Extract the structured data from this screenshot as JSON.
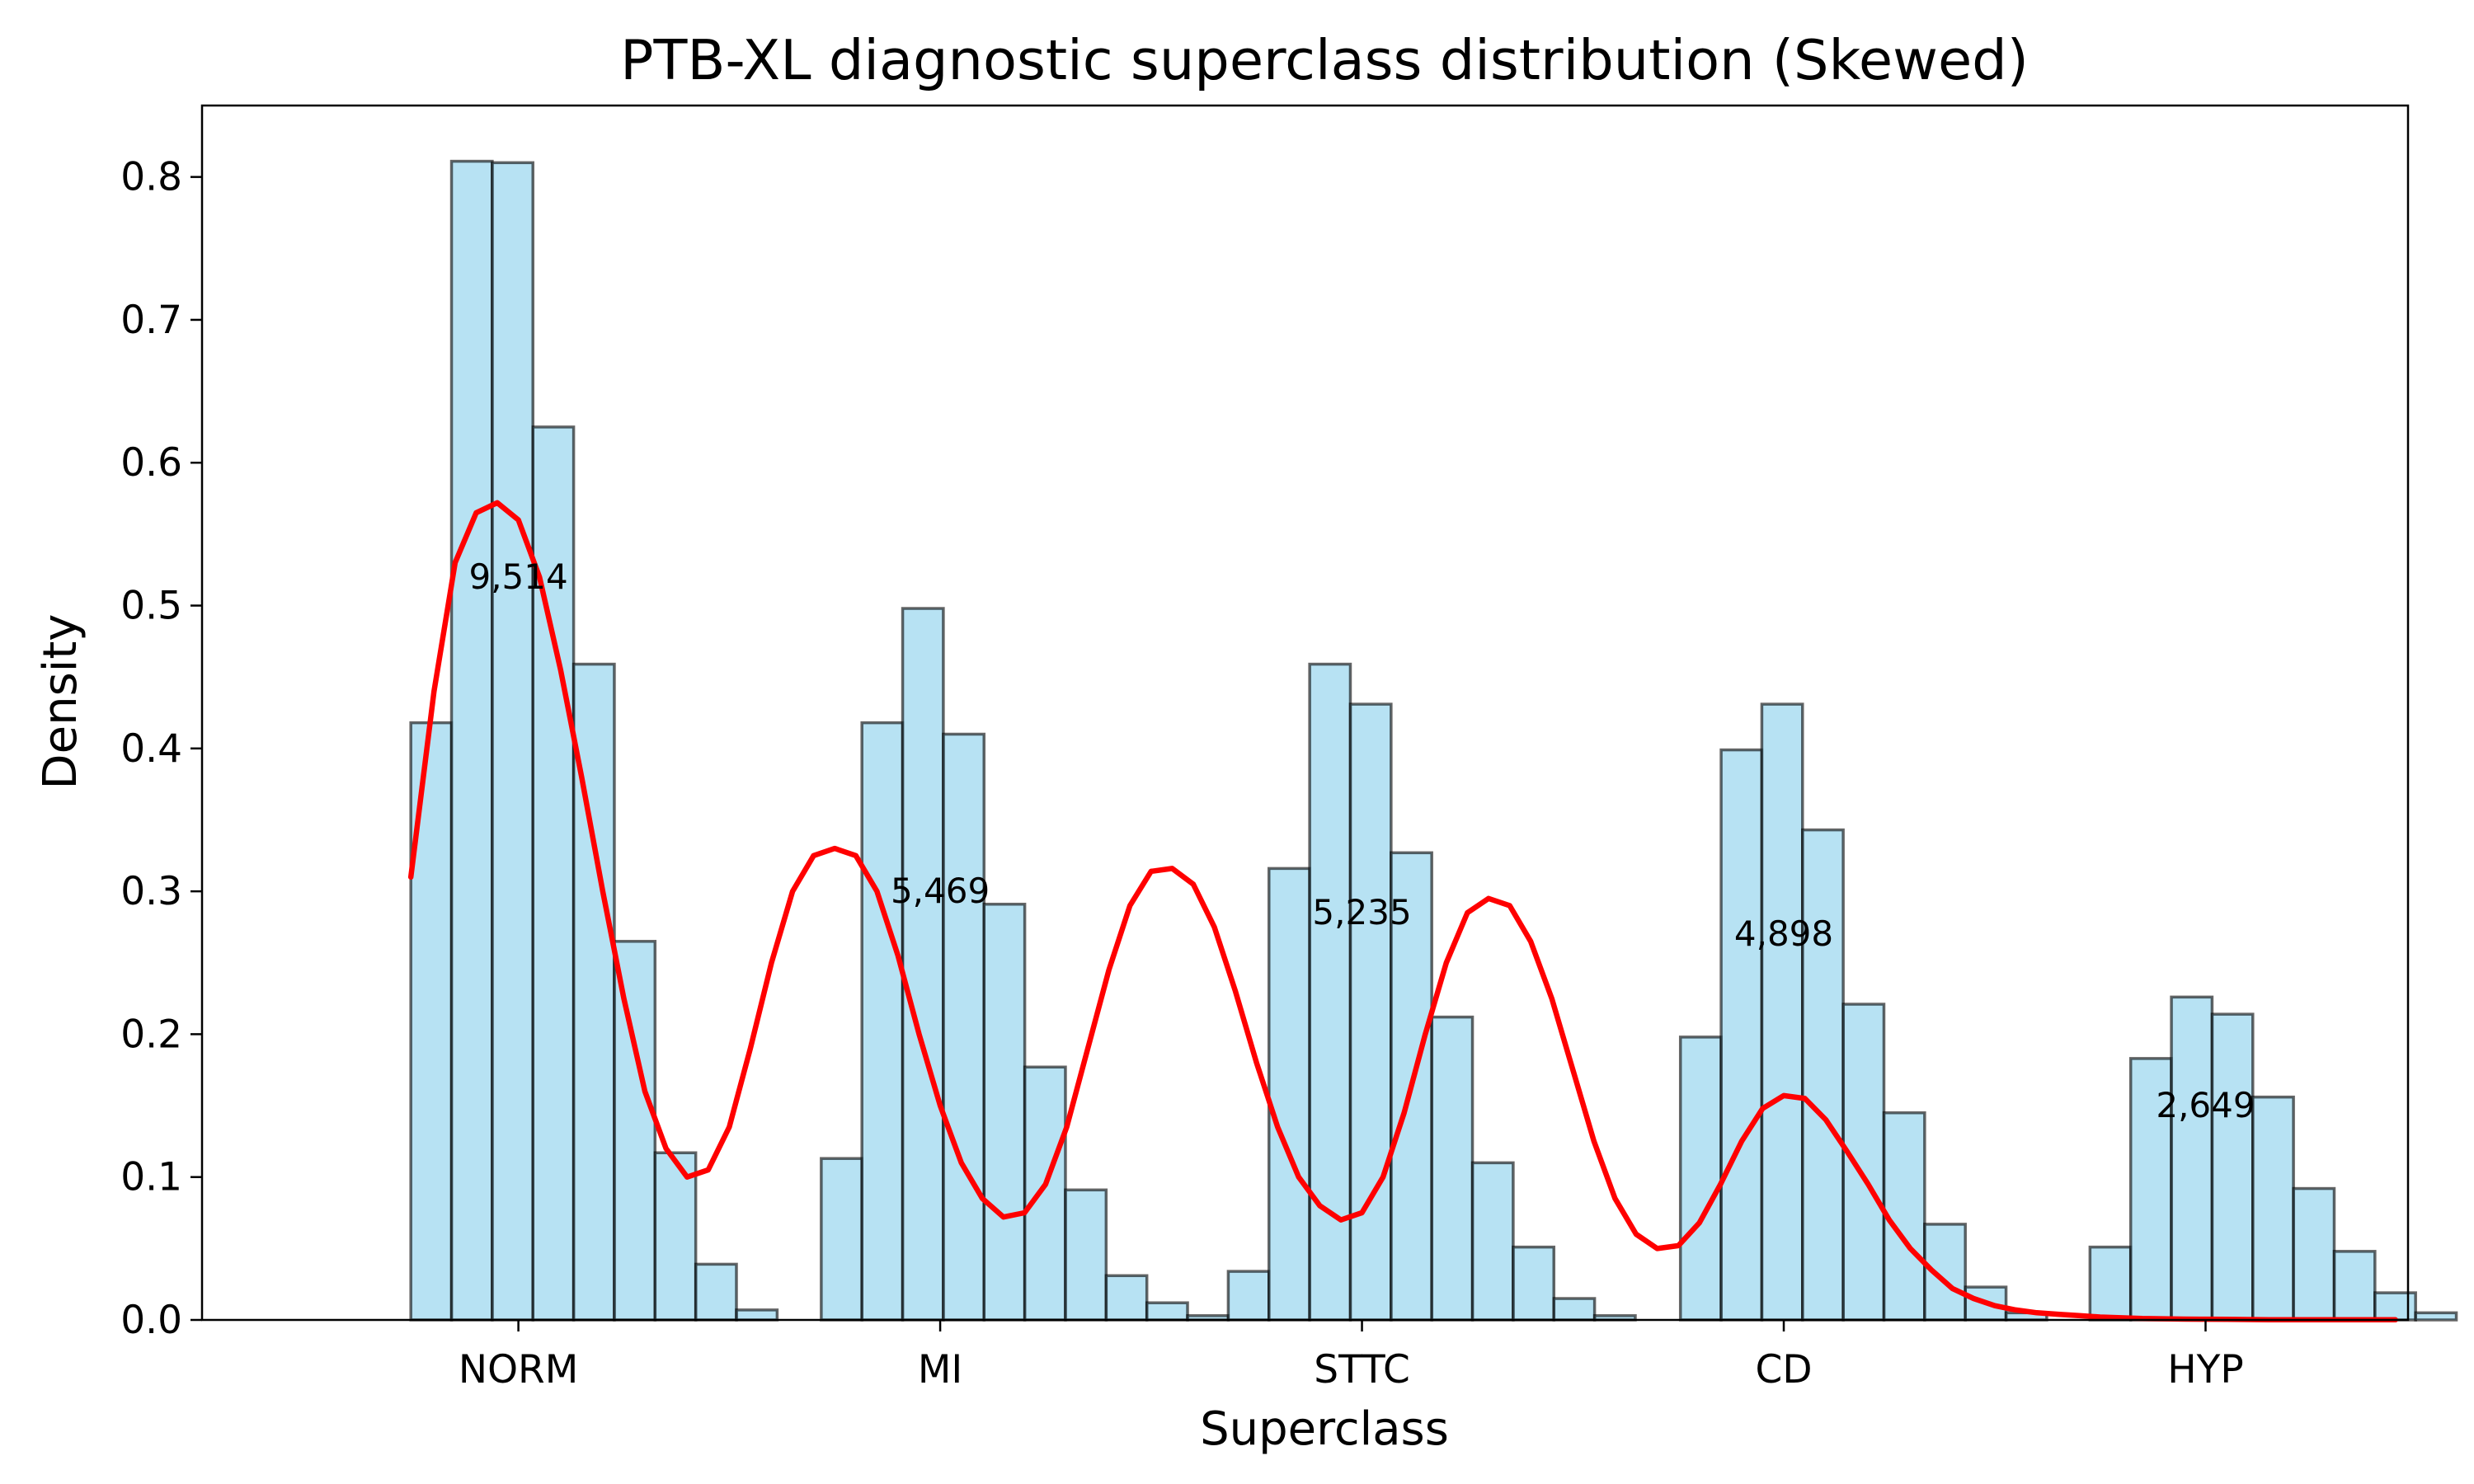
{
  "chart_data": {
    "type": "bar",
    "title": "PTB-XL diagnostic superclass distribution (Skewed)",
    "xlabel": "Superclass",
    "ylabel": "Density",
    "ylim": [
      0,
      0.85
    ],
    "xlim": [
      -0.75,
      4.48
    ],
    "grid": false,
    "y_ticks": [
      0.0,
      0.1,
      0.2,
      0.3,
      0.4,
      0.5,
      0.6,
      0.7,
      0.8
    ],
    "categories": [
      "NORM",
      "MI",
      "STTC",
      "CD",
      "HYP"
    ],
    "category_positions": [
      0,
      1,
      2,
      3,
      4
    ],
    "counts": [
      {
        "category": "NORM",
        "x": 0,
        "y": 0.52,
        "label": "9,514"
      },
      {
        "category": "MI",
        "x": 1,
        "y": 0.3,
        "label": "5,469"
      },
      {
        "category": "STTC",
        "x": 2,
        "y": 0.285,
        "label": "5,235"
      },
      {
        "category": "CD",
        "x": 3,
        "y": 0.27,
        "label": "4,898"
      },
      {
        "category": "HYP",
        "x": 4,
        "y": 0.15,
        "label": "2,649"
      }
    ],
    "histogram": {
      "bin_width": 0.0965,
      "groups": [
        {
          "category": "NORM",
          "start": -0.255,
          "values": [
            0.418,
            0.811,
            0.81,
            0.625,
            0.459,
            0.265,
            0.117,
            0.039,
            0.007
          ]
        },
        {
          "category": "MI",
          "start": 0.718,
          "values": [
            0.113,
            0.418,
            0.498,
            0.41,
            0.291,
            0.177,
            0.091,
            0.031,
            0.012,
            0.003
          ]
        },
        {
          "category": "STTC",
          "start": 1.683,
          "values": [
            0.034,
            0.316,
            0.459,
            0.431,
            0.327,
            0.212,
            0.11,
            0.051,
            0.015,
            0.003
          ]
        },
        {
          "category": "CD",
          "start": 2.755,
          "values": [
            0.198,
            0.399,
            0.431,
            0.343,
            0.221,
            0.145,
            0.067,
            0.023,
            0.005
          ]
        },
        {
          "category": "HYP",
          "start": 3.726,
          "values": [
            0.051,
            0.183,
            0.226,
            0.214,
            0.156,
            0.092,
            0.048,
            0.019,
            0.005
          ]
        }
      ]
    },
    "kde": {
      "name": "",
      "x": [
        -0.255,
        -0.2,
        -0.15,
        -0.1,
        -0.05,
        0.0,
        0.05,
        0.1,
        0.15,
        0.2,
        0.25,
        0.3,
        0.35,
        0.4,
        0.45,
        0.5,
        0.55,
        0.6,
        0.65,
        0.7,
        0.75,
        0.8,
        0.85,
        0.9,
        0.95,
        1.0,
        1.05,
        1.1,
        1.15,
        1.2,
        1.25,
        1.3,
        1.35,
        1.4,
        1.45,
        1.5,
        1.55,
        1.6,
        1.65,
        1.7,
        1.75,
        1.8,
        1.85,
        1.9,
        1.95,
        2.0,
        2.05,
        2.1,
        2.15,
        2.2,
        2.25,
        2.3,
        2.35,
        2.4,
        2.45,
        2.5,
        2.55,
        2.6,
        2.65,
        2.7,
        2.75,
        2.8,
        2.85,
        2.9,
        2.95,
        3.0,
        3.05,
        3.1,
        3.15,
        3.2,
        3.25,
        3.3,
        3.35,
        3.4,
        3.45,
        3.5,
        3.55,
        3.6,
        3.65,
        3.7,
        3.75,
        3.8,
        3.85,
        3.9,
        3.95,
        4.0,
        4.05,
        4.1,
        4.15,
        4.2,
        4.25,
        4.3,
        4.35,
        4.4,
        4.45,
        4.5,
        4.55,
        4.6,
        4.65,
        4.7,
        4.75,
        4.8,
        4.85
      ],
      "y": [
        0.31,
        0.44,
        0.53,
        0.565,
        0.572,
        0.56,
        0.52,
        0.455,
        0.38,
        0.3,
        0.225,
        0.16,
        0.12,
        0.1,
        0.105,
        0.135,
        0.19,
        0.25,
        0.3,
        0.325,
        0.33,
        0.325,
        0.3,
        0.255,
        0.2,
        0.15,
        0.11,
        0.085,
        0.072,
        0.075,
        0.095,
        0.135,
        0.19,
        0.245,
        0.29,
        0.314,
        0.316,
        0.305,
        0.275,
        0.23,
        0.18,
        0.135,
        0.1,
        0.08,
        0.07,
        0.075,
        0.1,
        0.145,
        0.2,
        0.25,
        0.285,
        0.295,
        0.29,
        0.265,
        0.225,
        0.175,
        0.125,
        0.085,
        0.06,
        0.05,
        0.052,
        0.068,
        0.095,
        0.125,
        0.148,
        0.157,
        0.155,
        0.14,
        0.118,
        0.095,
        0.07,
        0.05,
        0.035,
        0.022,
        0.015,
        0.01,
        0.007,
        0.005,
        0.004,
        0.003,
        0.002,
        0.0015,
        0.001,
        0.0008,
        0.0006,
        0.0005,
        0.0004,
        0.0003,
        0.0002,
        0.0002,
        0.0001,
        0.0001,
        0.0001,
        0.0001,
        0.0001,
        0.0001,
        0.0001,
        0.0001,
        0.0001,
        0.0001,
        0.0001,
        0.0001,
        0.0001
      ],
      "color": "#ff0000"
    },
    "bar_color": "#87ceeb"
  }
}
